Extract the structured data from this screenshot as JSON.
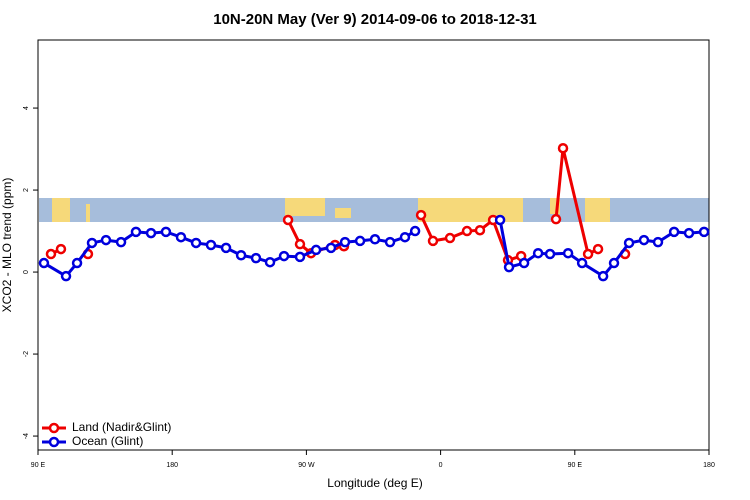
{
  "chart_data": {
    "type": "line",
    "title": "10N-20N May (Ver 9)   2014-09-06 to 2018-12-31",
    "x_label": "Longitude (deg E)",
    "y_label": "XCO2 - MLO trend (ppm)",
    "xlim": [
      90,
      540
    ],
    "xticks": [
      {
        "value": 90,
        "label": "90 E"
      },
      180,
      {
        "value": 270,
        "label": "90 W"
      },
      {
        "value": 360,
        "label": "0"
      },
      {
        "value": 450,
        "label": "90 E"
      },
      {
        "value": 540,
        "label": "180"
      }
    ],
    "ylim": [
      -4.34,
      5.66
    ],
    "yticks": [
      -4,
      -2,
      0,
      2,
      4
    ],
    "legend": "bottom-left",
    "series": [
      {
        "name": "Land (Nadir&Glint)",
        "color": "#ee0000",
        "x": [
          98.7,
          105.4,
          null,
          123.5,
          null,
          257.7,
          265.7,
          273.1,
          289.2,
          295.2,
          null,
          346.9,
          354.9,
          366.3,
          377.7,
          386.4,
          395.2,
          405.2,
          414,
          null,
          437.4,
          442.1,
          458.9,
          465.6,
          null,
          483.7
        ],
        "values": [
          0.44,
          0.56,
          null,
          0.44,
          null,
          1.27,
          0.68,
          0.46,
          0.66,
          0.63,
          null,
          1.39,
          0.76,
          0.83,
          1.0,
          1.02,
          1.27,
          0.29,
          0.39,
          null,
          1.29,
          3.02,
          0.44,
          0.56,
          null,
          0.44
        ]
      },
      {
        "name": "Ocean (Glint)",
        "color": "#0000dd",
        "x": [
          94,
          108.8,
          116.2,
          126.2,
          135.6,
          145.7,
          155.7,
          165.8,
          175.8,
          185.9,
          196,
          206,
          216.1,
          226.2,
          236.2,
          245.6,
          255,
          265.7,
          276.5,
          286.5,
          295.9,
          306,
          316,
          326.1,
          336.1,
          342.9,
          null,
          399.9,
          405.9,
          416,
          425.4,
          433.4,
          445.5,
          454.9,
          469,
          476.3,
          486.4,
          496.4,
          505.8,
          516.6,
          526.6,
          536.7
        ],
        "values": [
          0.22,
          -0.1,
          0.22,
          0.71,
          0.78,
          0.73,
          0.98,
          0.95,
          0.98,
          0.85,
          0.71,
          0.66,
          0.59,
          0.41,
          0.34,
          0.24,
          0.39,
          0.37,
          0.54,
          0.59,
          0.73,
          0.76,
          0.8,
          0.73,
          0.85,
          1.0,
          null,
          1.27,
          0.12,
          0.22,
          0.46,
          0.44,
          0.46,
          0.22,
          -0.1,
          0.22,
          0.71,
          0.78,
          0.73,
          0.98,
          0.95,
          0.98
        ]
      }
    ]
  }
}
